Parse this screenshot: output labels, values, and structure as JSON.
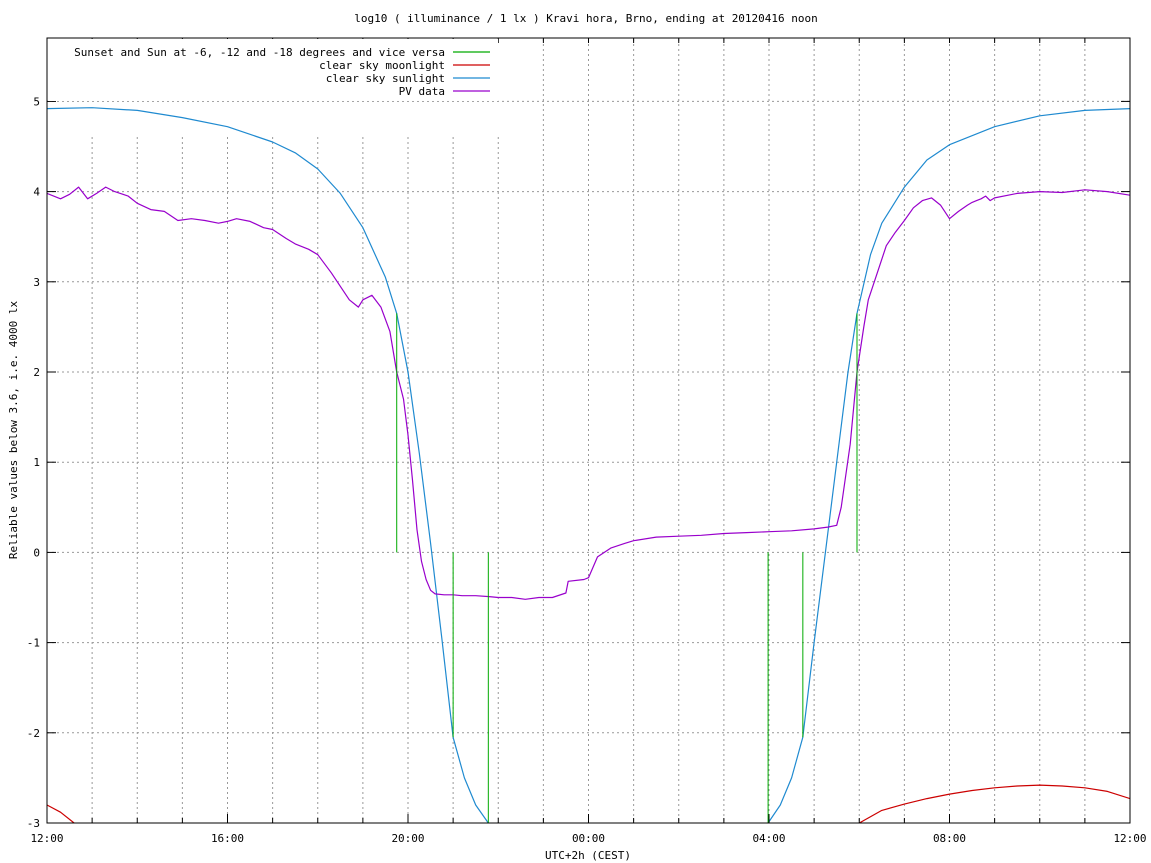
{
  "chart_data": {
    "type": "line",
    "title": "log10 ( illuminance / 1 lx ) Kravi hora, Brno, ending at 20120416 noon",
    "xlabel": "UTC+2h (CEST)",
    "ylabel": "Reliable values below 3.6, i.e. 4000 lx",
    "xlim": [
      0,
      24
    ],
    "ylim": [
      -3,
      5.7
    ],
    "x_unit": "hours since 12:00",
    "x_ticks": [
      {
        "v": 0,
        "label": "12:00"
      },
      {
        "v": 4,
        "label": "16:00"
      },
      {
        "v": 8,
        "label": "20:00"
      },
      {
        "v": 12,
        "label": "00:00"
      },
      {
        "v": 16,
        "label": "04:00"
      },
      {
        "v": 20,
        "label": "08:00"
      },
      {
        "v": 24,
        "label": "12:00"
      }
    ],
    "y_ticks": [
      {
        "v": -3,
        "label": "-3"
      },
      {
        "v": -2,
        "label": "-2"
      },
      {
        "v": -1,
        "label": "-1"
      },
      {
        "v": 0,
        "label": "0"
      },
      {
        "v": 1,
        "label": "1"
      },
      {
        "v": 2,
        "label": "2"
      },
      {
        "v": 3,
        "label": "3"
      },
      {
        "v": 4,
        "label": "4"
      },
      {
        "v": 5,
        "label": "5"
      }
    ],
    "grid": true,
    "legend_position": "top-left",
    "series": [
      {
        "name": "Sunset and Sun at -6, -12 and -18 degrees and vice versa",
        "color": "#00aa00",
        "style": "impulses",
        "x": [
          7.75,
          9.0,
          9.78,
          15.98,
          16.75,
          17.95
        ],
        "y": [
          2.65,
          -2.05,
          -3.0,
          -3.0,
          -2.05,
          2.65
        ]
      },
      {
        "name": "clear sky moonlight",
        "color": "#cc0000",
        "style": "line",
        "x": [
          0,
          0.3,
          0.6,
          18.0,
          18.5,
          19.0,
          19.5,
          20.0,
          20.5,
          21.0,
          21.5,
          22.0,
          22.5,
          23.0,
          23.5,
          24.0
        ],
        "y": [
          -2.8,
          -2.88,
          -3.0,
          -3.0,
          -2.86,
          -2.79,
          -2.73,
          -2.68,
          -2.64,
          -2.61,
          -2.59,
          -2.58,
          -2.59,
          -2.61,
          -2.65,
          -2.73
        ]
      },
      {
        "name": "clear sky sunlight",
        "color": "#1f8ad0",
        "style": "line",
        "x": [
          0,
          1,
          2,
          3,
          4,
          5,
          5.5,
          6,
          6.5,
          7,
          7.5,
          7.75,
          8,
          8.25,
          8.5,
          8.75,
          9,
          9.25,
          9.5,
          9.78,
          15.98,
          16.25,
          16.5,
          16.75,
          17,
          17.25,
          17.5,
          17.75,
          17.95,
          18.25,
          18.5,
          19,
          19.5,
          20,
          21,
          22,
          23,
          24
        ],
        "y": [
          4.92,
          4.93,
          4.9,
          4.82,
          4.72,
          4.55,
          4.43,
          4.25,
          3.98,
          3.6,
          3.05,
          2.65,
          2.0,
          1.1,
          0.1,
          -0.95,
          -2.05,
          -2.5,
          -2.8,
          -3.0,
          -3.0,
          -2.8,
          -2.5,
          -2.05,
          -1.0,
          0.0,
          1.0,
          2.0,
          2.65,
          3.3,
          3.65,
          4.05,
          4.35,
          4.52,
          4.72,
          4.84,
          4.9,
          4.92
        ]
      },
      {
        "name": "PV data",
        "color": "#9900cc",
        "style": "line",
        "x": [
          0,
          0.3,
          0.5,
          0.7,
          0.9,
          1.1,
          1.3,
          1.5,
          1.8,
          2.0,
          2.3,
          2.6,
          2.9,
          3.2,
          3.5,
          3.8,
          4.0,
          4.2,
          4.5,
          4.8,
          5.0,
          5.3,
          5.5,
          5.8,
          6.0,
          6.3,
          6.5,
          6.7,
          6.9,
          7.0,
          7.2,
          7.4,
          7.6,
          7.75,
          7.9,
          8.0,
          8.1,
          8.2,
          8.3,
          8.4,
          8.5,
          8.6,
          8.8,
          9.0,
          9.2,
          9.5,
          9.8,
          10.0,
          10.3,
          10.6,
          10.9,
          11.2,
          11.5,
          11.55,
          11.9,
          12.0,
          12.2,
          12.5,
          12.8,
          13.0,
          13.5,
          14.0,
          14.5,
          15.0,
          15.5,
          16.0,
          16.5,
          17.0,
          17.3,
          17.5,
          17.6,
          17.8,
          17.95,
          18.1,
          18.2,
          18.4,
          18.6,
          18.8,
          19.0,
          19.2,
          19.4,
          19.6,
          19.8,
          20.0,
          20.2,
          20.4,
          20.5,
          20.6,
          20.7,
          20.8,
          20.9,
          21.0,
          21.5,
          22.0,
          22.5,
          23.0,
          23.5,
          24.0
        ],
        "y": [
          3.98,
          3.92,
          3.97,
          4.05,
          3.92,
          3.98,
          4.05,
          4.0,
          3.95,
          3.87,
          3.8,
          3.78,
          3.68,
          3.7,
          3.68,
          3.65,
          3.67,
          3.7,
          3.67,
          3.6,
          3.58,
          3.48,
          3.42,
          3.36,
          3.3,
          3.1,
          2.95,
          2.8,
          2.72,
          2.8,
          2.85,
          2.72,
          2.45,
          2.0,
          1.7,
          1.3,
          0.8,
          0.25,
          -0.1,
          -0.3,
          -0.42,
          -0.46,
          -0.47,
          -0.47,
          -0.48,
          -0.48,
          -0.49,
          -0.5,
          -0.5,
          -0.52,
          -0.5,
          -0.5,
          -0.45,
          -0.32,
          -0.3,
          -0.28,
          -0.05,
          0.05,
          0.1,
          0.13,
          0.17,
          0.18,
          0.19,
          0.21,
          0.22,
          0.23,
          0.24,
          0.26,
          0.28,
          0.3,
          0.5,
          1.2,
          2.0,
          2.5,
          2.8,
          3.1,
          3.4,
          3.55,
          3.68,
          3.82,
          3.9,
          3.93,
          3.85,
          3.7,
          3.78,
          3.85,
          3.88,
          3.9,
          3.92,
          3.95,
          3.9,
          3.93,
          3.98,
          4.0,
          3.99,
          4.02,
          4.0,
          3.96
        ]
      }
    ]
  }
}
